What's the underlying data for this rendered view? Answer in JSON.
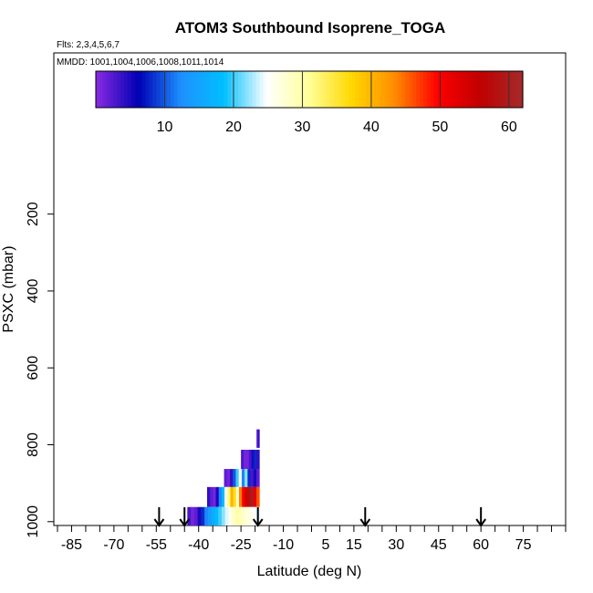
{
  "chart_data": {
    "type": "heatmap",
    "title": "ATOM3 Southbound Isoprene_TOGA",
    "flights_label": "Flts: 2,3,4,5,6,7",
    "mmdd_label": "MMDD: 1001,1004,1006,1008,1011,1014",
    "xlabel": "Latitude (deg N)",
    "ylabel": "PSXC (mbar)",
    "xlim": [
      -90,
      90
    ],
    "ylim": [
      1010,
      0
    ],
    "x_ticks": [
      "-85",
      "-70",
      "-55",
      "-40",
      "-25",
      "-10",
      "5",
      "15",
      "30",
      "45",
      "60",
      "75"
    ],
    "x_tick_values": [
      -85,
      -70,
      -55,
      -40,
      -25,
      -10,
      5,
      15,
      30,
      45,
      60,
      75
    ],
    "y_ticks": [
      "200",
      "400",
      "600",
      "800",
      "1000"
    ],
    "y_tick_values": [
      200,
      400,
      600,
      800,
      1000
    ],
    "colorbar": {
      "min": 0,
      "max": 62,
      "ticks": [
        "10",
        "20",
        "30",
        "40",
        "50",
        "60"
      ],
      "tick_values": [
        10,
        20,
        30,
        40,
        50,
        60
      ],
      "colors": [
        "#8a2be2",
        "#0000b4",
        "#1e90ff",
        "#00bfff",
        "#ffffff",
        "#ffff99",
        "#ffd700",
        "#ff8c00",
        "#ff0000",
        "#c00000",
        "#a52a2a"
      ]
    },
    "arrows_lat": [
      -54,
      -45,
      -19,
      19,
      60
    ],
    "bands": [
      {
        "p_top": 760,
        "p_bot": 808,
        "x0": -19.5,
        "x1": -18.5,
        "cells": [
          2,
          4
        ]
      },
      {
        "p_top": 813,
        "p_bot": 863,
        "x0": -25,
        "x1": -18.5,
        "cells": [
          3,
          1,
          1,
          3,
          5,
          8,
          4
        ]
      },
      {
        "p_top": 863,
        "p_bot": 910,
        "x0": -31,
        "x1": -18.5,
        "cells": [
          2,
          1,
          4,
          10,
          20,
          26,
          12,
          22,
          8,
          3,
          5,
          2
        ]
      },
      {
        "p_top": 910,
        "p_bot": 962,
        "x0": -37,
        "x1": -18.5,
        "cells": [
          4,
          2,
          1,
          5,
          12,
          18,
          26,
          32,
          40,
          36,
          28,
          44,
          50,
          54,
          58,
          60,
          52,
          46
        ]
      },
      {
        "p_top": 962,
        "p_bot": 1010,
        "x0": -44,
        "x1": -18.5,
        "cells": [
          3,
          1,
          2,
          5,
          8,
          12,
          14,
          16,
          18,
          20,
          22,
          24,
          26,
          28,
          30,
          29,
          28,
          27,
          26,
          25,
          24
        ]
      }
    ]
  }
}
